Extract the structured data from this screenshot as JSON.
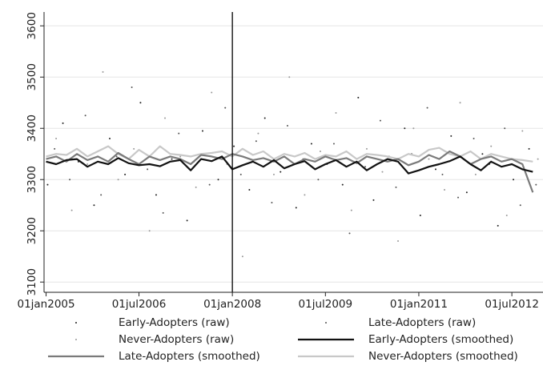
{
  "chart_data": {
    "type": "scatter-line",
    "xlim": [
      "2004-12-20",
      "2012-12-31"
    ],
    "xticks": [
      {
        "value": "2005-01-01",
        "label": "01jan2005"
      },
      {
        "value": "2006-07-01",
        "label": "01jul2006"
      },
      {
        "value": "2008-01-01",
        "label": "01jan2008"
      },
      {
        "value": "2009-07-01",
        "label": "01jul2009"
      },
      {
        "value": "2011-01-01",
        "label": "01jan2011"
      },
      {
        "value": "2012-07-01",
        "label": "01jul2012"
      }
    ],
    "ylim": [
      3080,
      3627
    ],
    "yticks": [
      3100,
      3200,
      3300,
      3400,
      3500,
      3600
    ],
    "grid": true,
    "vline": "2008-01-01",
    "series": [
      {
        "name": "Early-Adopters (raw)",
        "style": "points",
        "color": "#222222",
        "x": [
          "2005-01-10",
          "2005-04-10",
          "2005-07-10",
          "2005-10-10",
          "2006-01-10",
          "2006-04-10",
          "2006-07-10",
          "2006-10-10",
          "2007-01-10",
          "2007-04-10",
          "2007-07-10",
          "2007-10-10",
          "2008-01-10",
          "2008-04-10",
          "2008-07-10",
          "2008-10-10",
          "2009-01-10",
          "2009-04-10",
          "2009-07-10",
          "2009-10-10",
          "2010-01-10",
          "2010-04-10",
          "2010-07-10",
          "2010-10-10",
          "2011-01-10",
          "2011-04-10",
          "2011-07-10",
          "2011-10-10",
          "2012-01-10",
          "2012-04-10",
          "2012-07-10",
          "2012-10-10"
        ],
        "values": [
          3290,
          3410,
          3335,
          3250,
          3380,
          3310,
          3450,
          3270,
          3340,
          3220,
          3395,
          3300,
          3365,
          3280,
          3420,
          3315,
          3245,
          3370,
          3330,
          3290,
          3460,
          3260,
          3345,
          3400,
          3230,
          3320,
          3385,
          3275,
          3350,
          3210,
          3300,
          3360
        ]
      },
      {
        "name": "Late-Adopters (raw)",
        "style": "points",
        "color": "#555555",
        "x": [
          "2005-02-20",
          "2005-05-20",
          "2005-08-20",
          "2005-11-20",
          "2006-02-20",
          "2006-05-20",
          "2006-08-20",
          "2006-11-20",
          "2007-02-20",
          "2007-05-20",
          "2007-08-20",
          "2007-11-20",
          "2008-02-20",
          "2008-05-20",
          "2008-08-20",
          "2008-11-20",
          "2009-02-20",
          "2009-05-20",
          "2009-08-20",
          "2009-11-20",
          "2010-02-20",
          "2010-05-20",
          "2010-08-20",
          "2010-11-20",
          "2011-02-20",
          "2011-05-20",
          "2011-08-20",
          "2011-11-20",
          "2012-02-20",
          "2012-05-20",
          "2012-08-20",
          "2012-11-20"
        ],
        "values": [
          3360,
          3300,
          3425,
          3270,
          3345,
          3480,
          3320,
          3235,
          3390,
          3335,
          3290,
          3440,
          3310,
          3375,
          3255,
          3405,
          3340,
          3300,
          3370,
          3195,
          3325,
          3415,
          3285,
          3350,
          3440,
          3310,
          3265,
          3380,
          3330,
          3400,
          3250,
          3290
        ]
      },
      {
        "name": "Never-Adopters (raw)",
        "style": "points",
        "color": "#999999",
        "x": [
          "2005-03-01",
          "2005-06-01",
          "2005-09-01",
          "2005-12-01",
          "2006-03-01",
          "2006-06-01",
          "2006-09-01",
          "2006-12-01",
          "2007-03-01",
          "2007-06-01",
          "2007-09-01",
          "2007-12-01",
          "2008-03-01",
          "2008-06-01",
          "2008-09-01",
          "2008-12-01",
          "2009-03-01",
          "2009-06-01",
          "2009-09-01",
          "2009-12-01",
          "2010-03-01",
          "2010-06-01",
          "2010-09-01",
          "2010-12-01",
          "2011-03-01",
          "2011-06-01",
          "2011-09-01",
          "2011-12-01",
          "2012-03-01",
          "2012-06-01",
          "2012-09-01",
          "2012-12-01"
        ],
        "values": [
          3380,
          3240,
          3330,
          3510,
          3300,
          3360,
          3200,
          3420,
          3345,
          3285,
          3470,
          3330,
          3150,
          3390,
          3310,
          3500,
          3270,
          3355,
          3430,
          3240,
          3360,
          3315,
          3180,
          3400,
          3340,
          3280,
          3450,
          3310,
          3365,
          3230,
          3395,
          3340
        ]
      },
      {
        "name": "Early-Adopters (smoothed)",
        "style": "line",
        "color": "#111111",
        "x": [
          "2005-01-01",
          "2005-03-01",
          "2005-05-01",
          "2005-07-01",
          "2005-09-01",
          "2005-11-01",
          "2006-01-01",
          "2006-03-01",
          "2006-05-01",
          "2006-07-01",
          "2006-09-01",
          "2006-11-01",
          "2007-01-01",
          "2007-03-01",
          "2007-05-01",
          "2007-07-01",
          "2007-09-01",
          "2007-11-01",
          "2008-01-01",
          "2008-03-01",
          "2008-05-01",
          "2008-07-01",
          "2008-09-01",
          "2008-11-01",
          "2009-01-01",
          "2009-03-01",
          "2009-05-01",
          "2009-07-01",
          "2009-09-01",
          "2009-11-01",
          "2010-01-01",
          "2010-03-01",
          "2010-05-01",
          "2010-07-01",
          "2010-09-01",
          "2010-11-01",
          "2011-01-01",
          "2011-03-01",
          "2011-05-01",
          "2011-07-01",
          "2011-09-01",
          "2011-11-01",
          "2012-01-01",
          "2012-03-01",
          "2012-05-01",
          "2012-07-01",
          "2012-09-01",
          "2012-11-01"
        ],
        "values": [
          3335,
          3330,
          3338,
          3340,
          3325,
          3335,
          3330,
          3342,
          3332,
          3328,
          3330,
          3326,
          3335,
          3338,
          3318,
          3340,
          3336,
          3345,
          3320,
          3328,
          3335,
          3325,
          3338,
          3322,
          3330,
          3336,
          3320,
          3330,
          3338,
          3325,
          3335,
          3318,
          3330,
          3340,
          3335,
          3312,
          3318,
          3325,
          3330,
          3336,
          3345,
          3330,
          3318,
          3335,
          3325,
          3330,
          3320,
          3315
        ]
      },
      {
        "name": "Late-Adopters (smoothed)",
        "style": "line",
        "color": "#7a7a7a",
        "x": [
          "2005-01-01",
          "2005-03-01",
          "2005-05-01",
          "2005-07-01",
          "2005-09-01",
          "2005-11-01",
          "2006-01-01",
          "2006-03-01",
          "2006-05-01",
          "2006-07-01",
          "2006-09-01",
          "2006-11-01",
          "2007-01-01",
          "2007-03-01",
          "2007-05-01",
          "2007-07-01",
          "2007-09-01",
          "2007-11-01",
          "2008-01-01",
          "2008-03-01",
          "2008-05-01",
          "2008-07-01",
          "2008-09-01",
          "2008-11-01",
          "2009-01-01",
          "2009-03-01",
          "2009-05-01",
          "2009-07-01",
          "2009-09-01",
          "2009-11-01",
          "2010-01-01",
          "2010-03-01",
          "2010-05-01",
          "2010-07-01",
          "2010-09-01",
          "2010-11-01",
          "2011-01-01",
          "2011-03-01",
          "2011-05-01",
          "2011-07-01",
          "2011-09-01",
          "2011-11-01",
          "2012-01-01",
          "2012-03-01",
          "2012-05-01",
          "2012-07-01",
          "2012-09-01",
          "2012-11-01"
        ],
        "values": [
          3340,
          3345,
          3335,
          3350,
          3338,
          3345,
          3335,
          3352,
          3340,
          3330,
          3345,
          3338,
          3345,
          3340,
          3330,
          3348,
          3345,
          3340,
          3350,
          3345,
          3338,
          3342,
          3335,
          3345,
          3330,
          3340,
          3335,
          3345,
          3338,
          3342,
          3332,
          3345,
          3340,
          3335,
          3340,
          3328,
          3335,
          3348,
          3340,
          3355,
          3345,
          3330,
          3340,
          3345,
          3335,
          3340,
          3330,
          3275
        ]
      },
      {
        "name": "Never-Adopters (smoothed)",
        "style": "line",
        "color": "#c8c8c8",
        "x": [
          "2005-01-01",
          "2005-03-01",
          "2005-05-01",
          "2005-07-01",
          "2005-09-01",
          "2005-11-01",
          "2006-01-01",
          "2006-03-01",
          "2006-05-01",
          "2006-07-01",
          "2006-09-01",
          "2006-11-01",
          "2007-01-01",
          "2007-03-01",
          "2007-05-01",
          "2007-07-01",
          "2007-09-01",
          "2007-11-01",
          "2008-01-01",
          "2008-03-01",
          "2008-05-01",
          "2008-07-01",
          "2008-09-01",
          "2008-11-01",
          "2009-01-01",
          "2009-03-01",
          "2009-05-01",
          "2009-07-01",
          "2009-09-01",
          "2009-11-01",
          "2010-01-01",
          "2010-03-01",
          "2010-05-01",
          "2010-07-01",
          "2010-09-01",
          "2010-11-01",
          "2011-01-01",
          "2011-03-01",
          "2011-05-01",
          "2011-07-01",
          "2011-09-01",
          "2011-11-01",
          "2012-01-01",
          "2012-03-01",
          "2012-05-01",
          "2012-07-01",
          "2012-09-01",
          "2012-11-01"
        ],
        "values": [
          3345,
          3350,
          3348,
          3360,
          3345,
          3355,
          3365,
          3350,
          3340,
          3358,
          3345,
          3365,
          3350,
          3348,
          3345,
          3350,
          3352,
          3355,
          3345,
          3360,
          3348,
          3355,
          3340,
          3350,
          3345,
          3352,
          3340,
          3348,
          3345,
          3355,
          3340,
          3350,
          3348,
          3345,
          3340,
          3350,
          3345,
          3358,
          3362,
          3350,
          3345,
          3355,
          3340,
          3350,
          3345,
          3340,
          3338,
          3335
        ]
      }
    ]
  }
}
